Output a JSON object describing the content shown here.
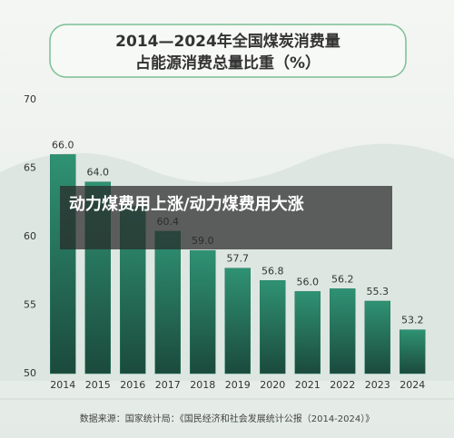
{
  "chart_data": {
    "type": "bar",
    "title": "2014—2024年全国煤炭消费量",
    "subtitle": "占能源消费总量比重（%）",
    "source": "数据来源：国家统计局：《国民经济和社会发展统计公报（2014-2024）》",
    "categories": [
      "2014",
      "2015",
      "2016",
      "2017",
      "2018",
      "2019",
      "2020",
      "2021",
      "2022",
      "2023",
      "2024"
    ],
    "values": [
      66.0,
      64.0,
      62.2,
      60.4,
      59.0,
      57.7,
      56.8,
      56.0,
      56.2,
      55.3,
      53.2
    ],
    "value_labels": [
      "66.0",
      "64.0",
      null,
      "60.4",
      "59.0",
      "57.7",
      "56.8",
      "56.0",
      "56.2",
      "55.3",
      "53.2"
    ],
    "color": "#2a7f66",
    "ylim": [
      50,
      70
    ],
    "yticks": [
      50,
      55,
      60,
      65,
      70
    ],
    "grid": false
  },
  "overlay": {
    "text": "动力煤费用上涨/动力煤费用大涨"
  }
}
